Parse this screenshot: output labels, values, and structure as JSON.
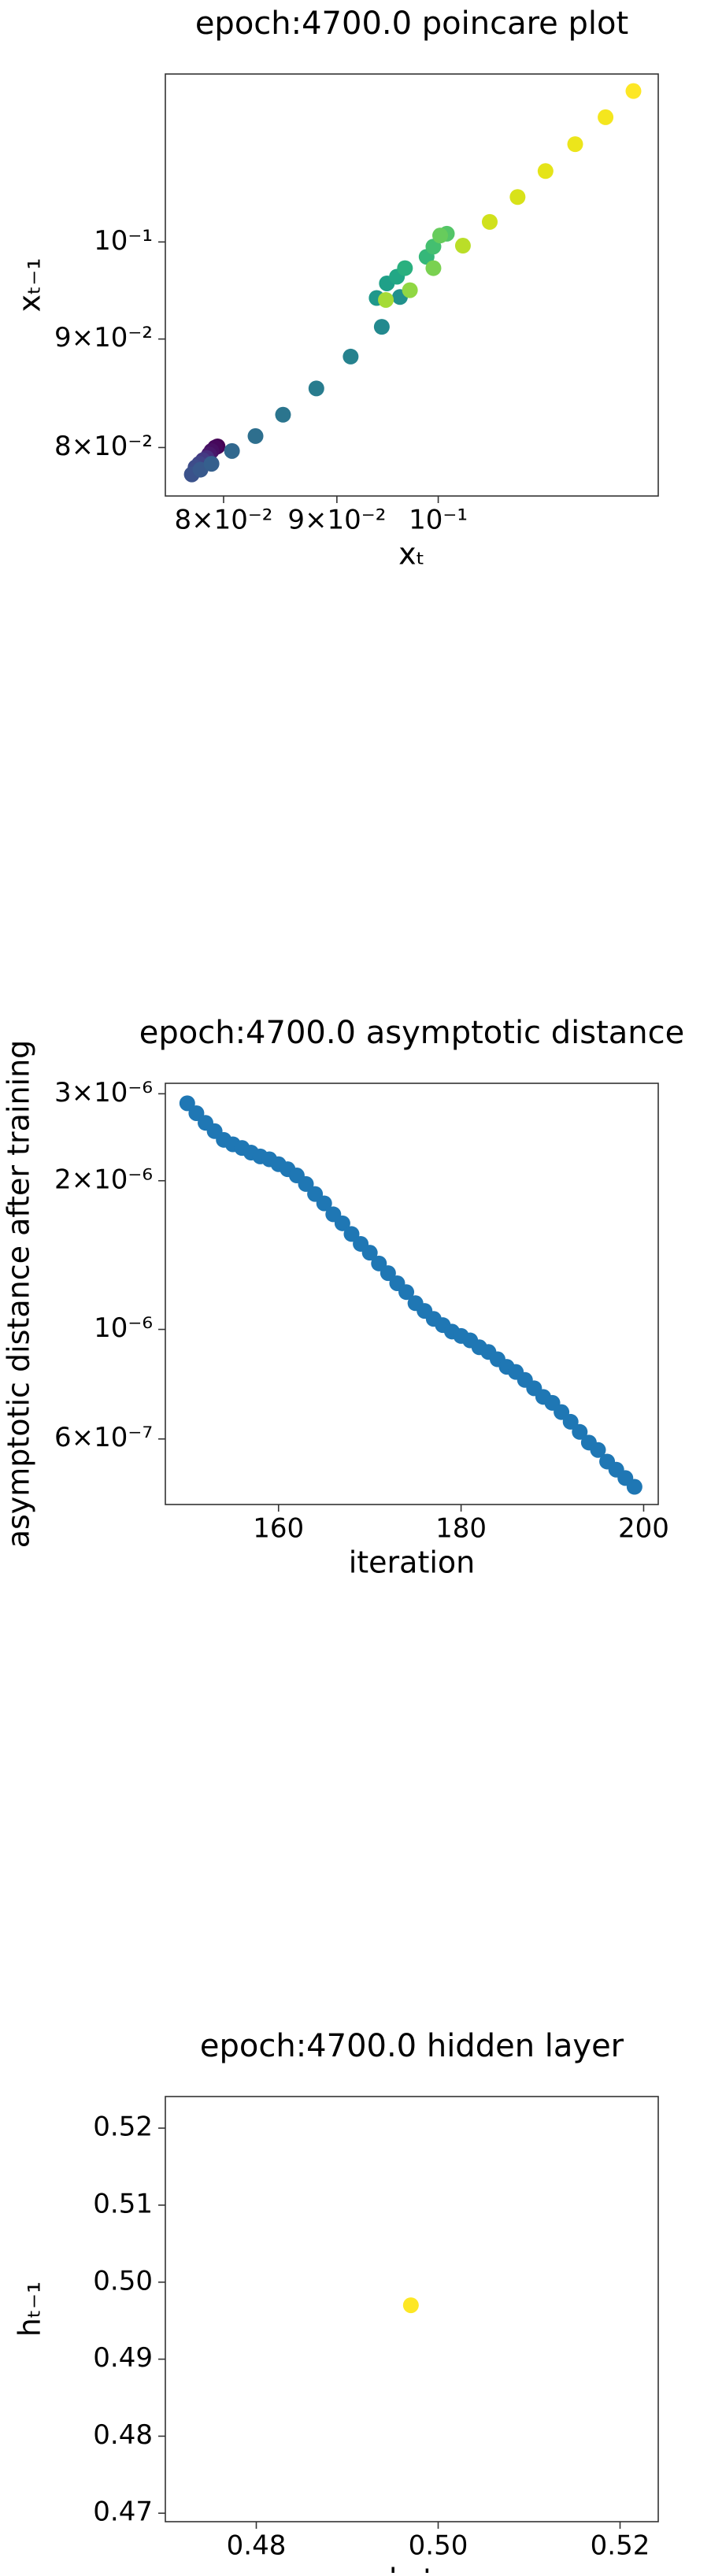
{
  "chart_data": [
    {
      "type": "scatter",
      "title": "epoch:4700.0 poincare plot",
      "xlabel": "xₜ",
      "ylabel": "xₜ₋₁",
      "xscale": "log",
      "yscale": "log",
      "x": [
        0.0795,
        0.0793,
        0.079,
        0.0788,
        0.0786,
        0.0783,
        0.078,
        0.0777,
        0.0774,
        0.0781,
        0.079,
        0.0807,
        0.0827,
        0.0851,
        0.0881,
        0.0913,
        0.0943,
        0.0961,
        0.0938,
        0.0948,
        0.0958,
        0.0966,
        0.0988,
        0.0995,
        0.1009,
        0.1002,
        0.0995,
        0.0971,
        0.0947,
        0.1026,
        0.1055,
        0.1086,
        0.1118,
        0.1153,
        0.119,
        0.1225
      ],
      "values": [
        0.0801,
        0.08,
        0.0797,
        0.0794,
        0.0791,
        0.0789,
        0.0786,
        0.0783,
        0.0777,
        0.0781,
        0.0786,
        0.0797,
        0.081,
        0.0829,
        0.0853,
        0.0883,
        0.0912,
        0.0942,
        0.0941,
        0.0956,
        0.0963,
        0.0972,
        0.0984,
        0.0995,
        0.1009,
        0.1007,
        0.0972,
        0.0949,
        0.0939,
        0.0996,
        0.1022,
        0.105,
        0.108,
        0.1112,
        0.1145,
        0.1178
      ],
      "colors": [
        "#440154",
        "#46085c",
        "#471063",
        "#48186a",
        "#472d7b",
        "#443a83",
        "#414487",
        "#3e4c8a",
        "#3b528b",
        "#38598c",
        "#355f8d",
        "#31688e",
        "#2e6f8e",
        "#2b758e",
        "#287c8e",
        "#26828e",
        "#23898e",
        "#21918c",
        "#1f988b",
        "#1fa088",
        "#22a785",
        "#2ab07f",
        "#35b779",
        "#44bf70",
        "#54c568",
        "#67cc5c",
        "#7ad151",
        "#90d743",
        "#a5db36",
        "#bade28",
        "#d0e11c",
        "#d8e219",
        "#e5e419",
        "#ece51b",
        "#f4e61e",
        "#fde725"
      ],
      "xlim": [
        0.0753,
        0.1257
      ],
      "ylim": [
        0.0759,
        0.12
      ],
      "xticks": [
        {
          "value": 0.08,
          "label": "8×10⁻²"
        },
        {
          "value": 0.09,
          "label": "9×10⁻²"
        },
        {
          "value": 0.1,
          "label": "10⁻¹"
        }
      ],
      "yticks": [
        {
          "value": 0.08,
          "label": "8×10⁻²"
        },
        {
          "value": 0.09,
          "label": "9×10⁻²"
        },
        {
          "value": 0.1,
          "label": "10⁻¹"
        }
      ],
      "grid": false
    },
    {
      "type": "scatter",
      "title": "epoch:4700.0 asymptotic distance",
      "xlabel": "iteration",
      "ylabel": "asymptotic distance after training",
      "xscale": "linear",
      "yscale": "log",
      "color": "#1f77b4",
      "x": [
        150,
        151,
        152,
        153,
        154,
        155,
        156,
        157,
        158,
        159,
        160,
        161,
        162,
        163,
        164,
        165,
        166,
        167,
        168,
        169,
        170,
        171,
        172,
        173,
        174,
        175,
        176,
        177,
        178,
        179,
        180,
        181,
        182,
        183,
        184,
        185,
        186,
        187,
        188,
        189,
        190,
        191,
        192,
        193,
        194,
        195,
        196,
        197,
        198,
        199
      ],
      "values": [
        2.87e-06,
        2.74e-06,
        2.62e-06,
        2.52e-06,
        2.42e-06,
        2.37e-06,
        2.33e-06,
        2.28e-06,
        2.24e-06,
        2.21e-06,
        2.16e-06,
        2.11e-06,
        2.05e-06,
        1.97e-06,
        1.88e-06,
        1.8e-06,
        1.71e-06,
        1.64e-06,
        1.56e-06,
        1.49e-06,
        1.43e-06,
        1.36e-06,
        1.3e-06,
        1.24e-06,
        1.19e-06,
        1.13e-06,
        1.09e-06,
        1.05e-06,
        1.02e-06,
        9.9e-07,
        9.7e-07,
        9.5e-07,
        9.2e-07,
        9e-07,
        8.7e-07,
        8.4e-07,
        8.2e-07,
        7.9e-07,
        7.6e-07,
        7.3e-07,
        7.1e-07,
        6.8e-07,
        6.5e-07,
        6.2e-07,
        5.9e-07,
        5.7e-07,
        5.4e-07,
        5.2e-07,
        5e-07,
        4.8e-07
      ],
      "xlim": [
        147.6,
        201.6
      ],
      "ylim": [
        4.42e-07,
        3.15e-06
      ],
      "xticks": [
        160,
        180,
        200
      ],
      "yticks": [
        {
          "value": 6e-07,
          "label": "6×10⁻⁷"
        },
        {
          "value": 1e-06,
          "label": "10⁻⁶"
        },
        {
          "value": 2e-06,
          "label": "2×10⁻⁶"
        },
        {
          "value": 3e-06,
          "label": "3×10⁻⁶"
        }
      ],
      "grid": false
    },
    {
      "type": "scatter",
      "title": "epoch:4700.0 hidden layer",
      "xlabel": "h_t",
      "ylabel": "hₜ₋₁",
      "xscale": "linear",
      "yscale": "linear",
      "color": "#fde725",
      "x": [
        0.497
      ],
      "values": [
        0.497
      ],
      "xlim": [
        0.47,
        0.5242
      ],
      "ylim": [
        0.4689,
        0.5241
      ],
      "xticks": [
        0.48,
        {
          "value": 0.5,
          "label": "0.50"
        },
        0.52
      ],
      "yticks": [
        0.47,
        0.48,
        0.49,
        {
          "value": 0.5,
          "label": "0.50"
        },
        0.51,
        0.52
      ],
      "grid": false
    }
  ]
}
